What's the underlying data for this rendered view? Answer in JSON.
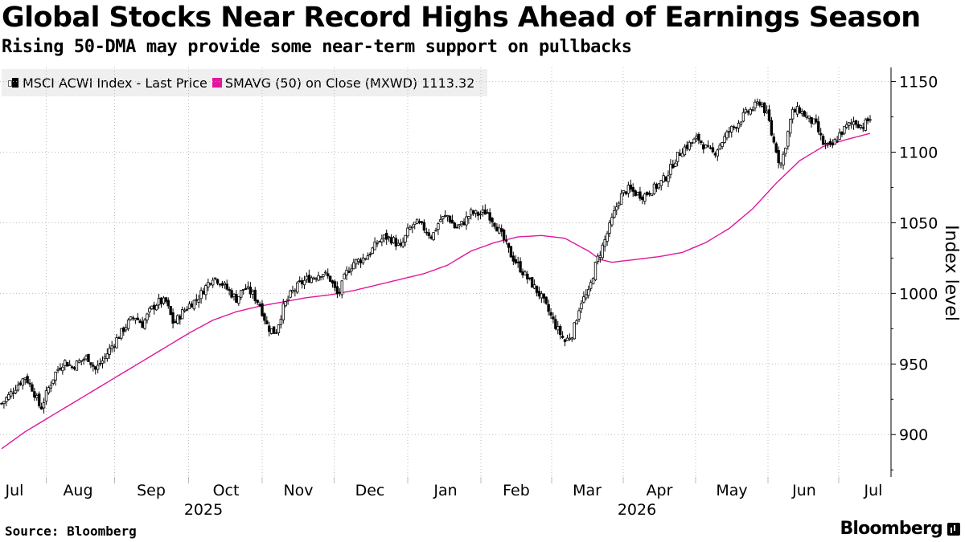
{
  "header": {
    "title": "Global Stocks Near Record Highs Ahead of Earnings Season",
    "subtitle": "Rising 50-DMA may provide some near-term support on pullbacks"
  },
  "legend": {
    "price_label": "MSCI ACWI Index - Last Price",
    "sma_label": "SMAVG (50)  on Close (MXWD) 1113.32"
  },
  "footer": {
    "source": "Source: Bloomberg",
    "brand": "Bloomberg"
  },
  "chart_data": {
    "type": "candlestick",
    "title": "Global Stocks Near Record Highs Ahead of Earnings Season",
    "subtitle": "Rising 50-DMA may provide some near-term support on pullbacks",
    "ylabel": "Index level",
    "ylim": [
      870,
      1160
    ],
    "yticks": [
      900,
      950,
      1000,
      1050,
      1100,
      1150
    ],
    "y_axis_side": "right",
    "grid": "dotted",
    "legend_position": "top-left",
    "x_months": [
      {
        "label": "Jul",
        "year": "2025"
      },
      {
        "label": "Aug"
      },
      {
        "label": "Sep"
      },
      {
        "label": "Oct"
      },
      {
        "label": "Nov"
      },
      {
        "label": "Dec"
      },
      {
        "label": "Jan",
        "year": "2026"
      },
      {
        "label": "Feb"
      },
      {
        "label": "Mar"
      },
      {
        "label": "Apr"
      },
      {
        "label": "May"
      },
      {
        "label": "Jun"
      },
      {
        "label": "Jul"
      }
    ],
    "year_labels": [
      {
        "label": "2025",
        "month_index": 3
      },
      {
        "label": "2026",
        "month_index": 9
      }
    ],
    "colors": {
      "candle": "#000000",
      "sma": "#e0179c",
      "grid": "#bbbbbb"
    },
    "price_anchors": [
      [
        0,
        922
      ],
      [
        4,
        928
      ],
      [
        8,
        935
      ],
      [
        12,
        941
      ],
      [
        16,
        932
      ],
      [
        20,
        918
      ],
      [
        24,
        933
      ],
      [
        28,
        945
      ],
      [
        32,
        952
      ],
      [
        36,
        948
      ],
      [
        40,
        952
      ],
      [
        44,
        955
      ],
      [
        48,
        946
      ],
      [
        52,
        953
      ],
      [
        56,
        962
      ],
      [
        60,
        970
      ],
      [
        64,
        978
      ],
      [
        68,
        984
      ],
      [
        72,
        978
      ],
      [
        76,
        988
      ],
      [
        80,
        994
      ],
      [
        84,
        994
      ],
      [
        88,
        978
      ],
      [
        92,
        986
      ],
      [
        96,
        992
      ],
      [
        100,
        996
      ],
      [
        104,
        1004
      ],
      [
        108,
        1012
      ],
      [
        112,
        1008
      ],
      [
        116,
        1002
      ],
      [
        120,
        996
      ],
      [
        124,
        1004
      ],
      [
        128,
        1000
      ],
      [
        132,
        992
      ],
      [
        136,
        976
      ],
      [
        140,
        972
      ],
      [
        144,
        990
      ],
      [
        148,
        1000
      ],
      [
        152,
        1006
      ],
      [
        156,
        1010
      ],
      [
        160,
        1012
      ],
      [
        164,
        1015
      ],
      [
        168,
        1010
      ],
      [
        172,
        998
      ],
      [
        176,
        1014
      ],
      [
        180,
        1022
      ],
      [
        184,
        1024
      ],
      [
        188,
        1028
      ],
      [
        192,
        1036
      ],
      [
        196,
        1040
      ],
      [
        200,
        1038
      ],
      [
        204,
        1032
      ],
      [
        208,
        1045
      ],
      [
        212,
        1050
      ],
      [
        216,
        1046
      ],
      [
        220,
        1040
      ],
      [
        224,
        1052
      ],
      [
        228,
        1055
      ],
      [
        232,
        1046
      ],
      [
        236,
        1050
      ],
      [
        240,
        1057
      ],
      [
        244,
        1056
      ],
      [
        248,
        1058
      ],
      [
        252,
        1050
      ],
      [
        256,
        1040
      ],
      [
        260,
        1028
      ],
      [
        264,
        1020
      ],
      [
        268,
        1012
      ],
      [
        272,
        1005
      ],
      [
        276,
        997
      ],
      [
        280,
        986
      ],
      [
        284,
        975
      ],
      [
        288,
        966
      ],
      [
        292,
        972
      ],
      [
        296,
        994
      ],
      [
        300,
        1000
      ],
      [
        304,
        1022
      ],
      [
        308,
        1036
      ],
      [
        312,
        1052
      ],
      [
        316,
        1068
      ],
      [
        320,
        1074
      ],
      [
        324,
        1071
      ],
      [
        328,
        1069
      ],
      [
        332,
        1073
      ],
      [
        336,
        1077
      ],
      [
        340,
        1083
      ],
      [
        344,
        1094
      ],
      [
        348,
        1102
      ],
      [
        352,
        1106
      ],
      [
        356,
        1110
      ],
      [
        360,
        1103
      ],
      [
        364,
        1099
      ],
      [
        368,
        1107
      ],
      [
        372,
        1115
      ],
      [
        376,
        1120
      ],
      [
        380,
        1127
      ],
      [
        384,
        1131
      ],
      [
        388,
        1136
      ],
      [
        392,
        1124
      ],
      [
        394,
        1110
      ],
      [
        396,
        1102
      ],
      [
        398,
        1090
      ],
      [
        400,
        1100
      ],
      [
        402,
        1114
      ],
      [
        404,
        1128
      ],
      [
        408,
        1130
      ],
      [
        412,
        1124
      ],
      [
        416,
        1120
      ],
      [
        420,
        1106
      ],
      [
        424,
        1103
      ],
      [
        428,
        1112
      ],
      [
        432,
        1118
      ],
      [
        436,
        1122
      ],
      [
        440,
        1118
      ],
      [
        444,
        1124
      ]
    ],
    "sma_anchors": [
      [
        0,
        890
      ],
      [
        12,
        902
      ],
      [
        24,
        912
      ],
      [
        36,
        922
      ],
      [
        48,
        932
      ],
      [
        60,
        942
      ],
      [
        72,
        952
      ],
      [
        84,
        962
      ],
      [
        96,
        972
      ],
      [
        108,
        981
      ],
      [
        120,
        987
      ],
      [
        132,
        991
      ],
      [
        144,
        994
      ],
      [
        156,
        997
      ],
      [
        168,
        999
      ],
      [
        180,
        1002
      ],
      [
        192,
        1006
      ],
      [
        204,
        1010
      ],
      [
        216,
        1014
      ],
      [
        228,
        1020
      ],
      [
        240,
        1030
      ],
      [
        252,
        1036
      ],
      [
        264,
        1040
      ],
      [
        276,
        1041
      ],
      [
        288,
        1039
      ],
      [
        300,
        1030
      ],
      [
        306,
        1024
      ],
      [
        312,
        1022
      ],
      [
        324,
        1024
      ],
      [
        336,
        1026
      ],
      [
        348,
        1029
      ],
      [
        360,
        1036
      ],
      [
        372,
        1046
      ],
      [
        384,
        1060
      ],
      [
        396,
        1078
      ],
      [
        408,
        1094
      ],
      [
        420,
        1104
      ],
      [
        432,
        1109
      ],
      [
        444,
        1113.32
      ]
    ],
    "sma_last_value": 1113.32
  }
}
